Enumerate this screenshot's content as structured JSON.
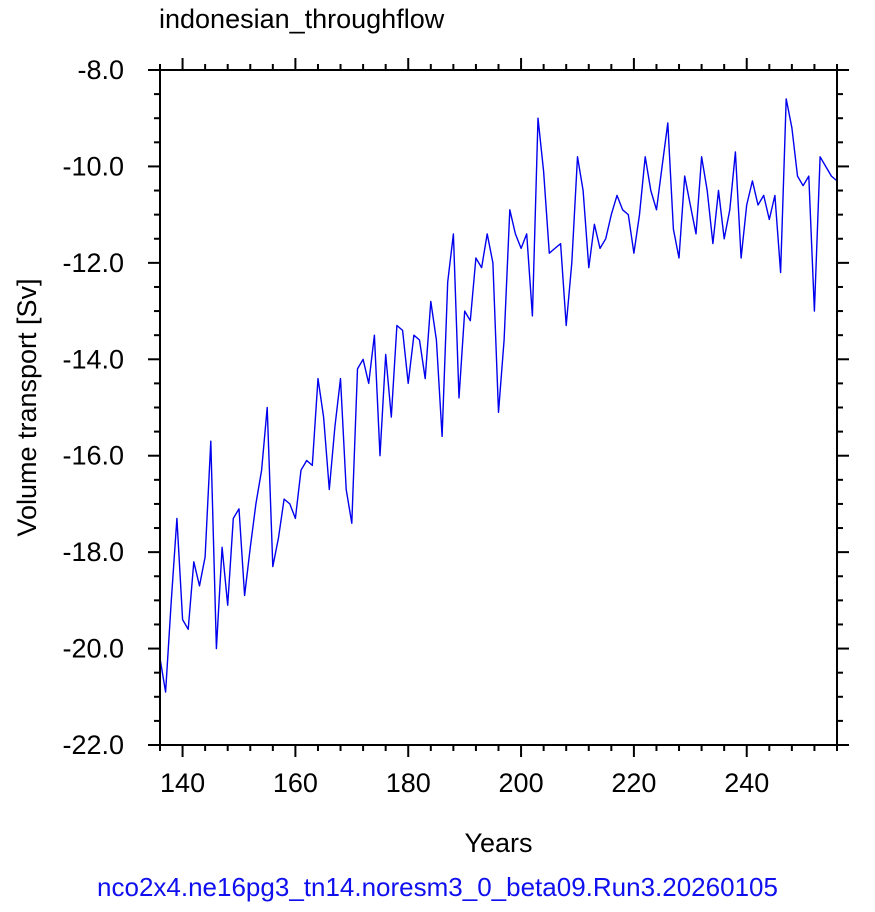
{
  "chart_data": {
    "type": "line",
    "title": "indonesian_throughflow",
    "xlabel": "Years",
    "ylabel": "Volume transport [Sv]",
    "xlim": [
      136,
      256
    ],
    "ylim": [
      -22.0,
      -8.0
    ],
    "x_ticks": [
      140,
      160,
      180,
      200,
      220,
      240
    ],
    "y_ticks": [
      -22.0,
      -20.0,
      -18.0,
      -16.0,
      -14.0,
      -12.0,
      -10.0,
      -8.0
    ],
    "x_tick_labels": [
      "140",
      "160",
      "180",
      "200",
      "220",
      "240"
    ],
    "y_tick_labels": [
      "-22.0",
      "-20.0",
      "-18.0",
      "-16.0",
      "-14.0",
      "-12.0",
      "-10.0",
      "-8.0"
    ],
    "grid": false,
    "series": [
      {
        "color": "#0000ee",
        "x": [
          136,
          137,
          138,
          139,
          140,
          141,
          142,
          143,
          144,
          145,
          146,
          147,
          148,
          149,
          150,
          151,
          152,
          153,
          154,
          155,
          156,
          157,
          158,
          159,
          160,
          161,
          162,
          163,
          164,
          165,
          166,
          167,
          168,
          169,
          170,
          171,
          172,
          173,
          174,
          175,
          176,
          177,
          178,
          179,
          180,
          181,
          182,
          183,
          184,
          185,
          186,
          187,
          188,
          189,
          190,
          191,
          192,
          193,
          194,
          195,
          196,
          197,
          198,
          199,
          200,
          201,
          202,
          203,
          204,
          205,
          206,
          207,
          208,
          209,
          210,
          211,
          212,
          213,
          214,
          215,
          216,
          217,
          218,
          219,
          220,
          221,
          222,
          223,
          224,
          225,
          226,
          227,
          228,
          229,
          230,
          231,
          232,
          233,
          234,
          235,
          236,
          237,
          238,
          239,
          240,
          241,
          242,
          243,
          244,
          245,
          246,
          247,
          248,
          249,
          250,
          251,
          252,
          253,
          254,
          255,
          256
        ],
        "y": [
          -20.2,
          -20.9,
          -19.0,
          -17.3,
          -19.4,
          -19.6,
          -18.2,
          -18.7,
          -18.1,
          -15.7,
          -20.0,
          -17.9,
          -19.1,
          -17.3,
          -17.1,
          -18.9,
          -17.9,
          -17.0,
          -16.3,
          -15.0,
          -18.3,
          -17.7,
          -16.9,
          -17.0,
          -17.3,
          -16.3,
          -16.1,
          -16.2,
          -14.4,
          -15.2,
          -16.7,
          -15.4,
          -14.4,
          -16.7,
          -17.4,
          -14.2,
          -14.0,
          -14.5,
          -13.5,
          -16.0,
          -13.9,
          -15.2,
          -13.3,
          -13.4,
          -14.5,
          -13.5,
          -13.6,
          -14.4,
          -12.8,
          -13.6,
          -15.6,
          -12.4,
          -11.4,
          -14.8,
          -13.0,
          -13.2,
          -11.9,
          -12.1,
          -11.4,
          -12.0,
          -15.1,
          -13.6,
          -10.9,
          -11.4,
          -11.7,
          -11.4,
          -13.1,
          -9.0,
          -10.1,
          -11.8,
          -11.7,
          -11.6,
          -13.3,
          -12.0,
          -9.8,
          -10.5,
          -12.1,
          -11.2,
          -11.7,
          -11.5,
          -11.0,
          -10.6,
          -10.9,
          -11.0,
          -11.8,
          -11.0,
          -9.8,
          -10.5,
          -10.9,
          -10.0,
          -9.1,
          -11.3,
          -11.9,
          -10.2,
          -10.8,
          -11.4,
          -9.8,
          -10.5,
          -11.6,
          -10.5,
          -11.5,
          -10.9,
          -9.7,
          -11.9,
          -10.8,
          -10.3,
          -10.8,
          -10.6,
          -11.1,
          -10.6,
          -12.2,
          -8.6,
          -9.2,
          -10.2,
          -10.4,
          -10.2,
          -13.0,
          -9.8,
          -10.0,
          -10.2,
          -10.3
        ]
      }
    ]
  },
  "footer": "nco2x4.ne16pg3_tn14.noresm3_0_beta09.Run3.20260105"
}
